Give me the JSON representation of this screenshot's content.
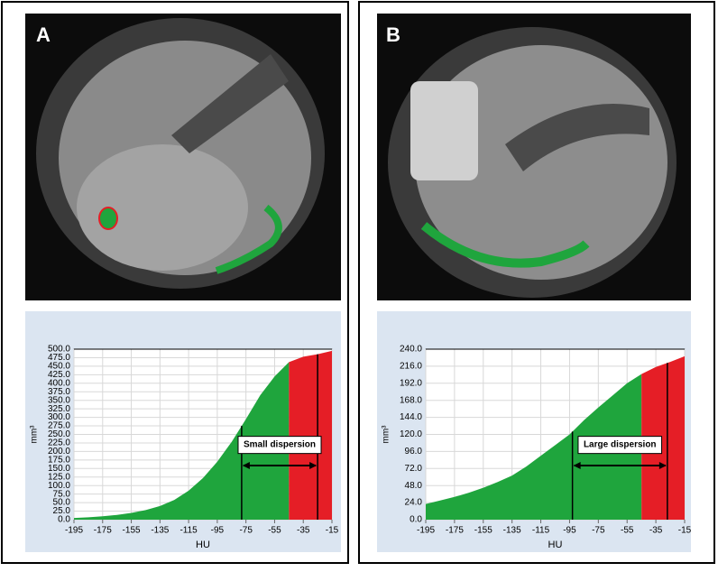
{
  "panels": [
    "A",
    "B"
  ],
  "chart_data": [
    {
      "type": "area",
      "x_label": "HU",
      "y_label": "mm³",
      "xlim": [
        -195,
        -15
      ],
      "xticks": [
        -195,
        -175,
        -155,
        -135,
        -115,
        -95,
        -75,
        -55,
        -35,
        -15
      ],
      "ylim": [
        0,
        500
      ],
      "yticks": [
        {
          "value": 0,
          "label": "0.0"
        },
        {
          "value": 25,
          "label": "25.0"
        },
        {
          "value": 50,
          "label": "50.0"
        },
        {
          "value": 75,
          "label": "75.0"
        },
        {
          "value": 100,
          "label": "100.0"
        },
        {
          "value": 125,
          "label": "125.0"
        },
        {
          "value": 150,
          "label": "150.0"
        },
        {
          "value": 175,
          "label": "175.0"
        },
        {
          "value": 200,
          "label": "200.0"
        },
        {
          "value": 225,
          "label": "225.0"
        },
        {
          "value": 250,
          "label": "250.0"
        },
        {
          "value": 275,
          "label": "275.0"
        },
        {
          "value": 300,
          "label": "300.0"
        },
        {
          "value": 325,
          "label": "325.0"
        },
        {
          "value": 350,
          "label": "350.0"
        },
        {
          "value": 375,
          "label": "375.0"
        },
        {
          "value": 400,
          "label": "400.0"
        },
        {
          "value": 425,
          "label": "425.0"
        },
        {
          "value": 450,
          "label": "450.0"
        },
        {
          "value": 475,
          "label": "475.0"
        },
        {
          "value": 500,
          "label": "500.0"
        }
      ],
      "grid": true,
      "series": [
        {
          "color": "#1fa53d",
          "x": [
            -195,
            -185,
            -175,
            -165,
            -155,
            -145,
            -135,
            -125,
            -115,
            -105,
            -95,
            -85,
            -75,
            -65,
            -55,
            -45
          ],
          "values": [
            5,
            7,
            10,
            14,
            20,
            28,
            40,
            58,
            85,
            122,
            170,
            228,
            295,
            365,
            420,
            462
          ]
        },
        {
          "color": "#e51e26",
          "x": [
            -45,
            -35,
            -25,
            -15
          ],
          "values": [
            462,
            478,
            485,
            495
          ]
        }
      ],
      "annotation": {
        "text": "Small dispersion",
        "from": -78,
        "to": -25
      }
    },
    {
      "type": "area",
      "x_label": "HU",
      "y_label": "mm³",
      "xlim": [
        -195,
        -15
      ],
      "xticks": [
        -195,
        -175,
        -155,
        -135,
        -115,
        -95,
        -75,
        -55,
        -35,
        -15
      ],
      "ylim": [
        0,
        240
      ],
      "yticks": [
        {
          "value": 0,
          "label": "0.0"
        },
        {
          "value": 24,
          "label": "24.0"
        },
        {
          "value": 48,
          "label": "48.0"
        },
        {
          "value": 72,
          "label": "72.0"
        },
        {
          "value": 96,
          "label": "96.0"
        },
        {
          "value": 120,
          "label": "120.0"
        },
        {
          "value": 144,
          "label": "144.0"
        },
        {
          "value": 168,
          "label": "168.0"
        },
        {
          "value": 192,
          "label": "192.0"
        },
        {
          "value": 216,
          "label": "216.0"
        },
        {
          "value": 240,
          "label": "240.0"
        }
      ],
      "grid": true,
      "series": [
        {
          "color": "#1fa53d",
          "x": [
            -195,
            -185,
            -175,
            -165,
            -155,
            -145,
            -135,
            -125,
            -115,
            -105,
            -95,
            -85,
            -75,
            -65,
            -55,
            -45
          ],
          "values": [
            22,
            27,
            32,
            38,
            45,
            53,
            62,
            75,
            90,
            105,
            120,
            140,
            158,
            175,
            192,
            205
          ]
        },
        {
          "color": "#e51e26",
          "x": [
            -45,
            -35,
            -25,
            -15
          ],
          "values": [
            205,
            215,
            222,
            230
          ]
        }
      ],
      "annotation": {
        "text": "Large dispersion",
        "from": -93,
        "to": -27
      }
    }
  ]
}
